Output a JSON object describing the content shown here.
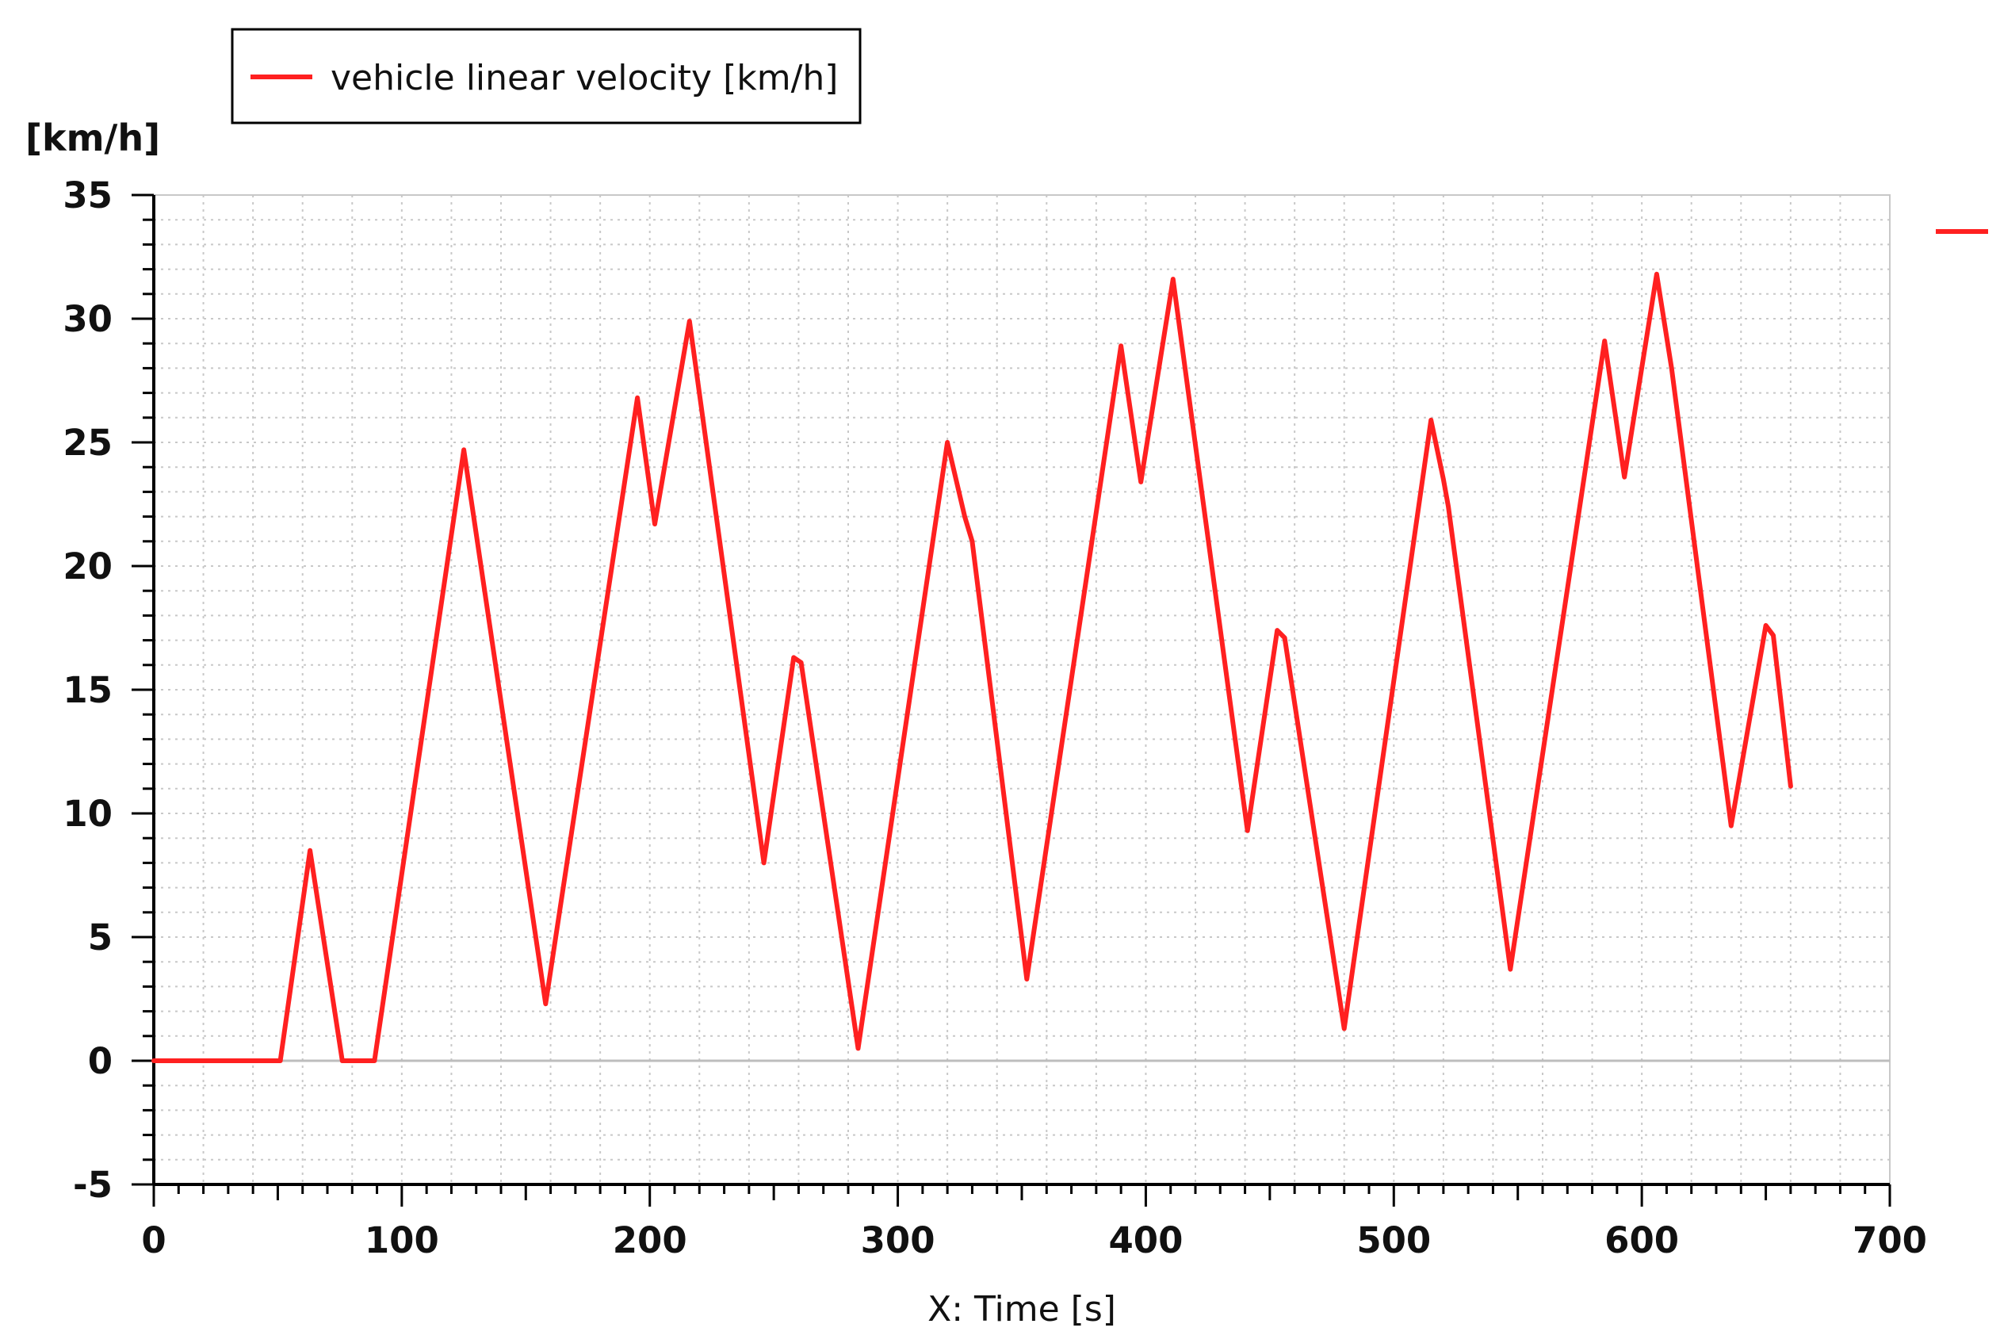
{
  "chart_data": {
    "type": "line",
    "ylabel": "[km/h]",
    "xlabel": "X: Time [s]",
    "xlim": [
      0,
      700
    ],
    "ylim": [
      -5,
      35
    ],
    "x_ticks": [
      0,
      100,
      200,
      300,
      400,
      500,
      600,
      700
    ],
    "y_ticks": [
      -5,
      0,
      5,
      10,
      15,
      20,
      25,
      30,
      35
    ],
    "grid": true,
    "legend_position": "top-left, above plot",
    "series": [
      {
        "name": "vehicle linear velocity [km/h]",
        "color": "#ff2020",
        "x": [
          0,
          51,
          63,
          76,
          89,
          125,
          158,
          195,
          202,
          216,
          246,
          258,
          261,
          284,
          320,
          327,
          330,
          352,
          390,
          398,
          411,
          441,
          453,
          456,
          480,
          515,
          520,
          522,
          547,
          585,
          593,
          606,
          612,
          636,
          650,
          653,
          660
        ],
        "y": [
          0,
          0,
          8.5,
          0,
          0,
          24.7,
          2.3,
          26.8,
          21.7,
          29.9,
          8.0,
          16.3,
          16.1,
          0.5,
          25.0,
          22,
          21,
          3.3,
          28.9,
          23.4,
          31.6,
          9.3,
          17.4,
          17.1,
          1.3,
          25.9,
          23.5,
          22.4,
          3.7,
          29.1,
          23.6,
          31.8,
          28,
          9.5,
          17.6,
          17.2,
          11.1
        ]
      }
    ]
  },
  "colors": {
    "line": "#ff2020",
    "axis": "#000000",
    "grid": "#c8c8c8",
    "zero_line": "#bdbdbd"
  }
}
